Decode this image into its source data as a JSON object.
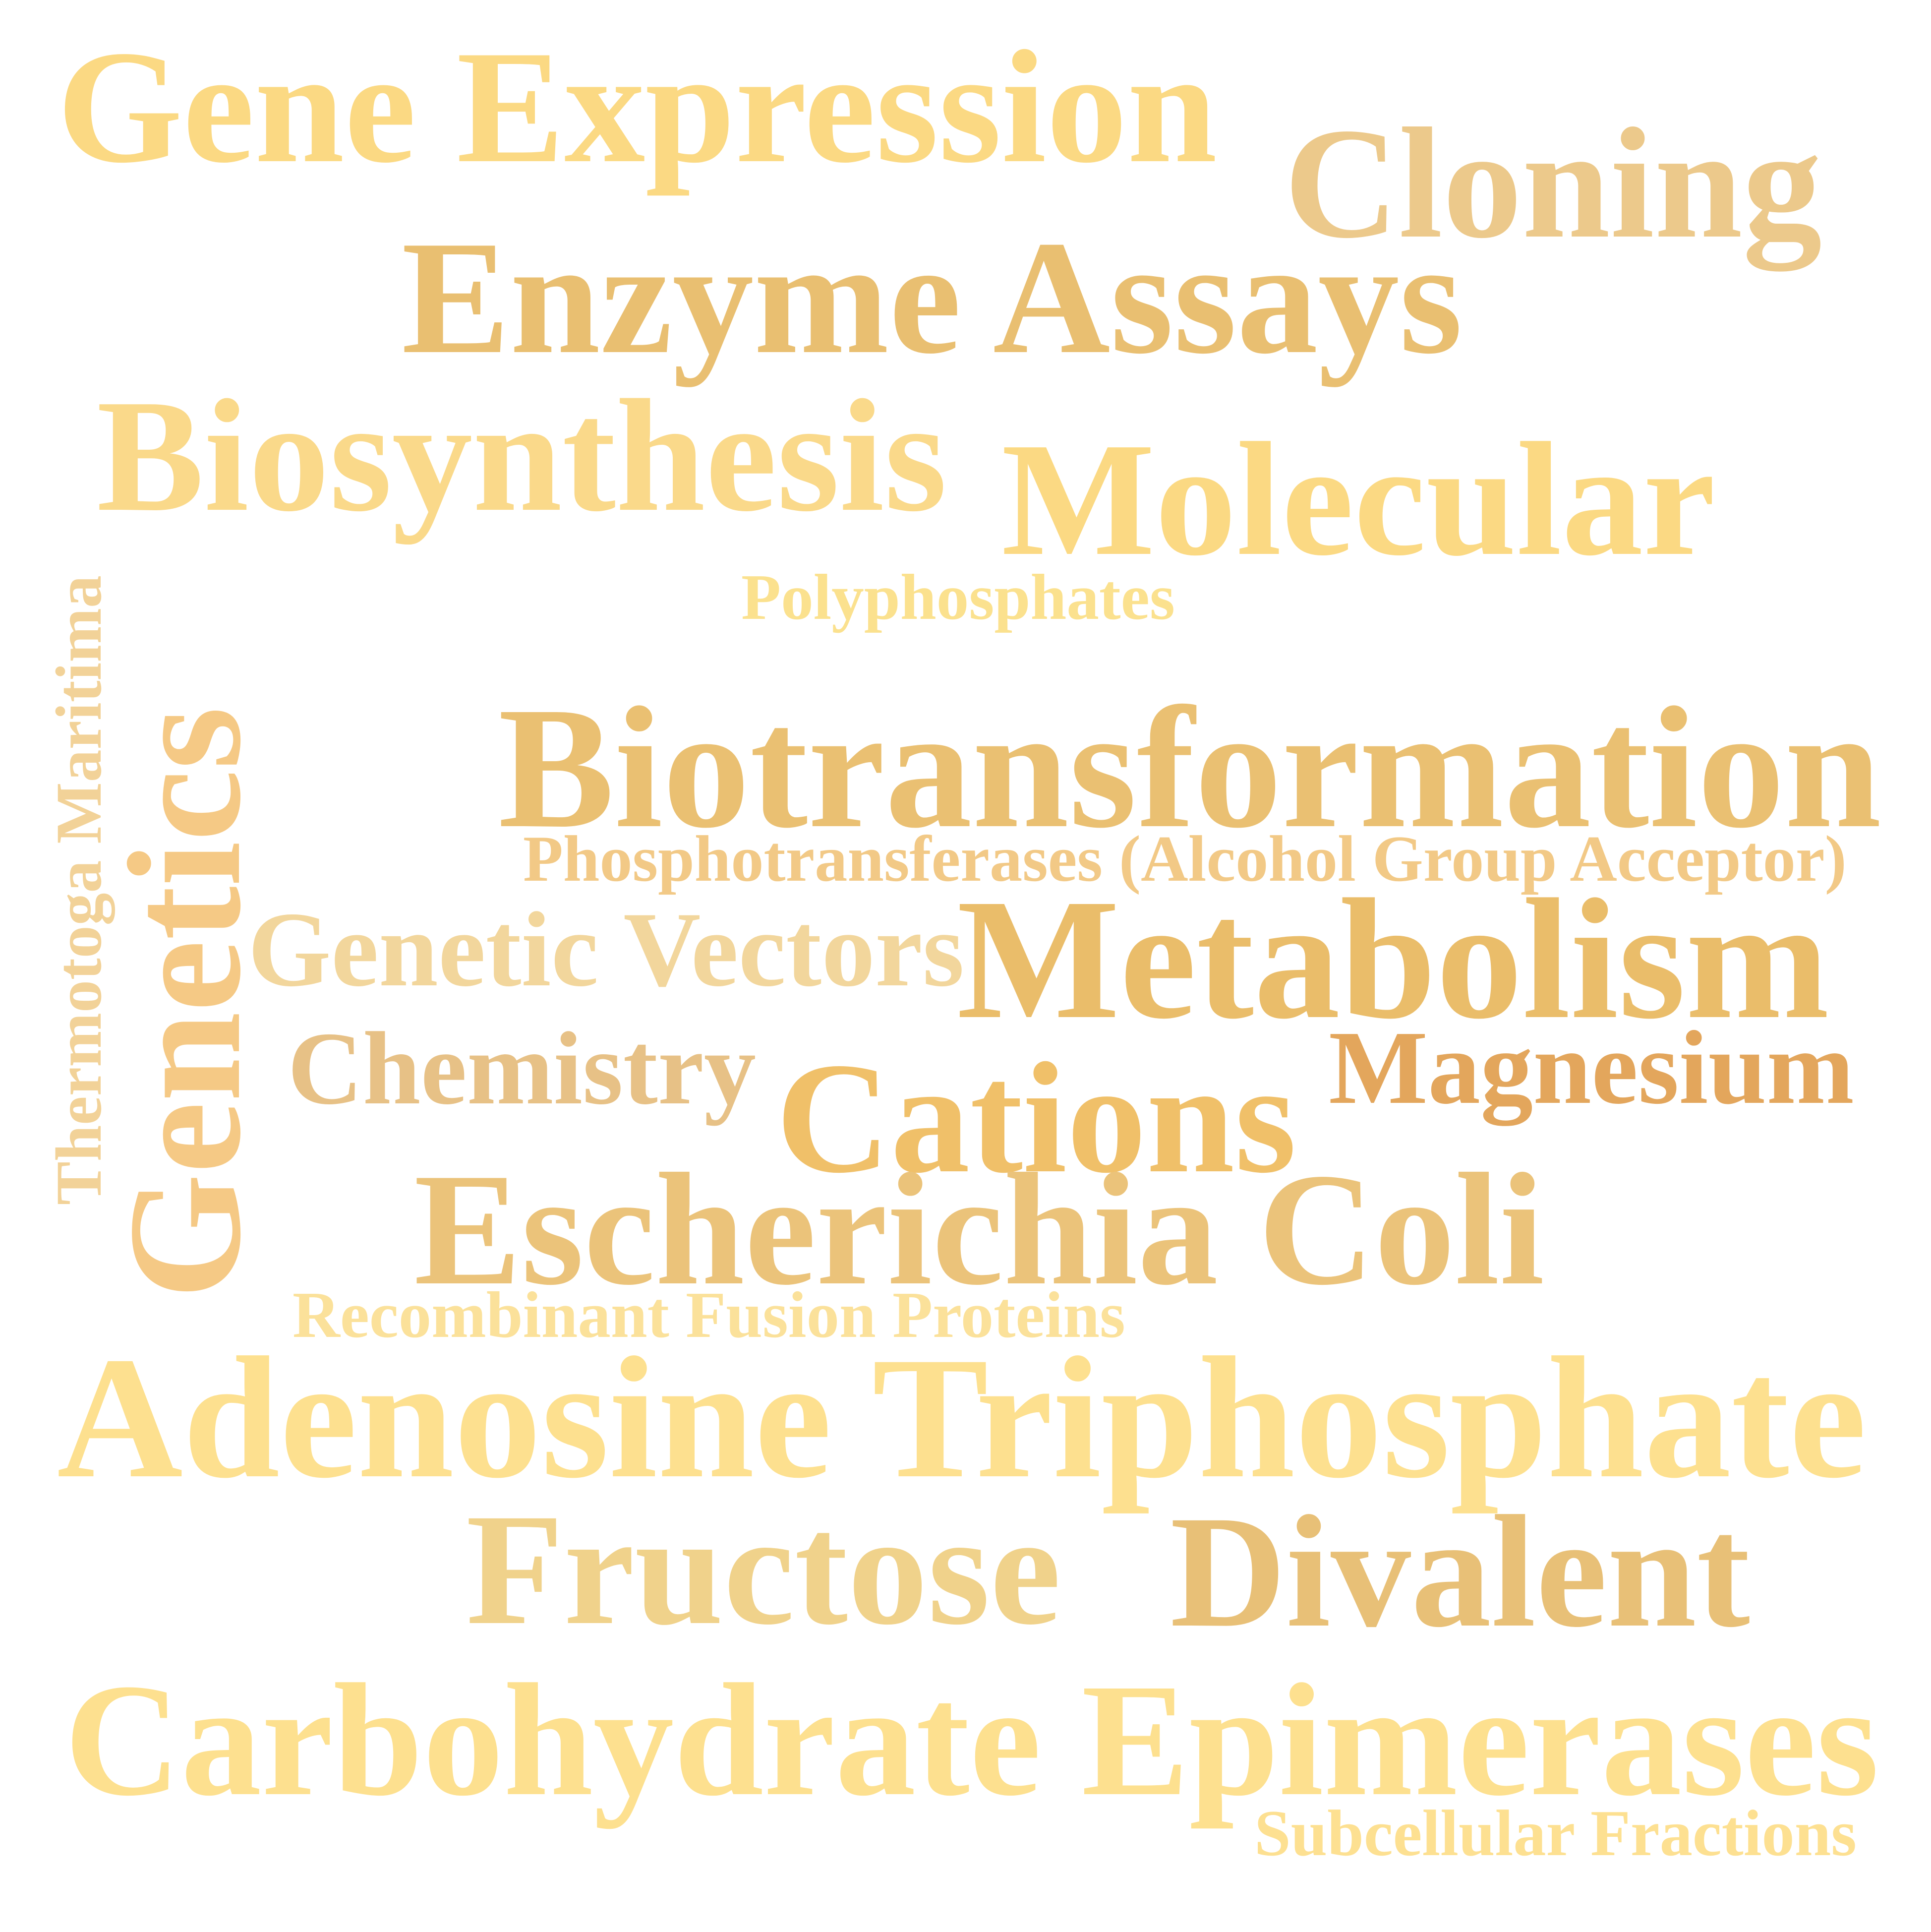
{
  "word_cloud": {
    "words": [
      {
        "id": "gene-expression",
        "text": "Gene Expression",
        "color": "#fbd983"
      },
      {
        "id": "cloning",
        "text": "Cloning",
        "color": "#ecc98b"
      },
      {
        "id": "enzyme-assays",
        "text": "Enzyme Assays",
        "color": "#e9bf71"
      },
      {
        "id": "biosynthesis",
        "text": "Biosynthesis",
        "color": "#fad98a"
      },
      {
        "id": "molecular",
        "text": "Molecular",
        "color": "#fbd983"
      },
      {
        "id": "polyphosphates",
        "text": "Polyphosphates",
        "color": "#fbe18e"
      },
      {
        "id": "thermotoga-maritima",
        "text": "Thermotoga Maritima",
        "color": "#f2d298"
      },
      {
        "id": "genetics",
        "text": "Genetics",
        "color": "#f5c985"
      },
      {
        "id": "biotransformation",
        "text": "Biotransformation",
        "color": "#eac072"
      },
      {
        "id": "phosphotransferases",
        "text": "Phosphotransferases (Alcohol Group Acceptor)",
        "color": "#f2c986"
      },
      {
        "id": "genetic-vectors",
        "text": "Genetic Vectors",
        "color": "#f2d69c"
      },
      {
        "id": "metabolism",
        "text": "Metabolism",
        "color": "#eabd6a"
      },
      {
        "id": "chemistry",
        "text": "Chemistry",
        "color": "#e7c186"
      },
      {
        "id": "magnesium",
        "text": "Magnesium",
        "color": "#e3a65c"
      },
      {
        "id": "cations",
        "text": "Cations",
        "color": "#f0c069"
      },
      {
        "id": "escherichia-coli",
        "text": "Escherichia Coli",
        "color": "#ebc37a"
      },
      {
        "id": "recombinant-fusion-proteins",
        "text": "Recombinant Fusion Proteins",
        "color": "#fbe19a"
      },
      {
        "id": "adenosine-triphosphate",
        "text": "Adenosine Triphosphate",
        "color": "#fde08f"
      },
      {
        "id": "fructose",
        "text": "Fructose",
        "color": "#f0d28b"
      },
      {
        "id": "divalent",
        "text": "Divalent",
        "color": "#e8c077"
      },
      {
        "id": "carbohydrate-epimerases",
        "text": "Carbohydrate Epimerases",
        "color": "#fde08f"
      },
      {
        "id": "subcellular-fractions",
        "text": "Subcellular Fractions",
        "color": "#fde091"
      }
    ]
  }
}
